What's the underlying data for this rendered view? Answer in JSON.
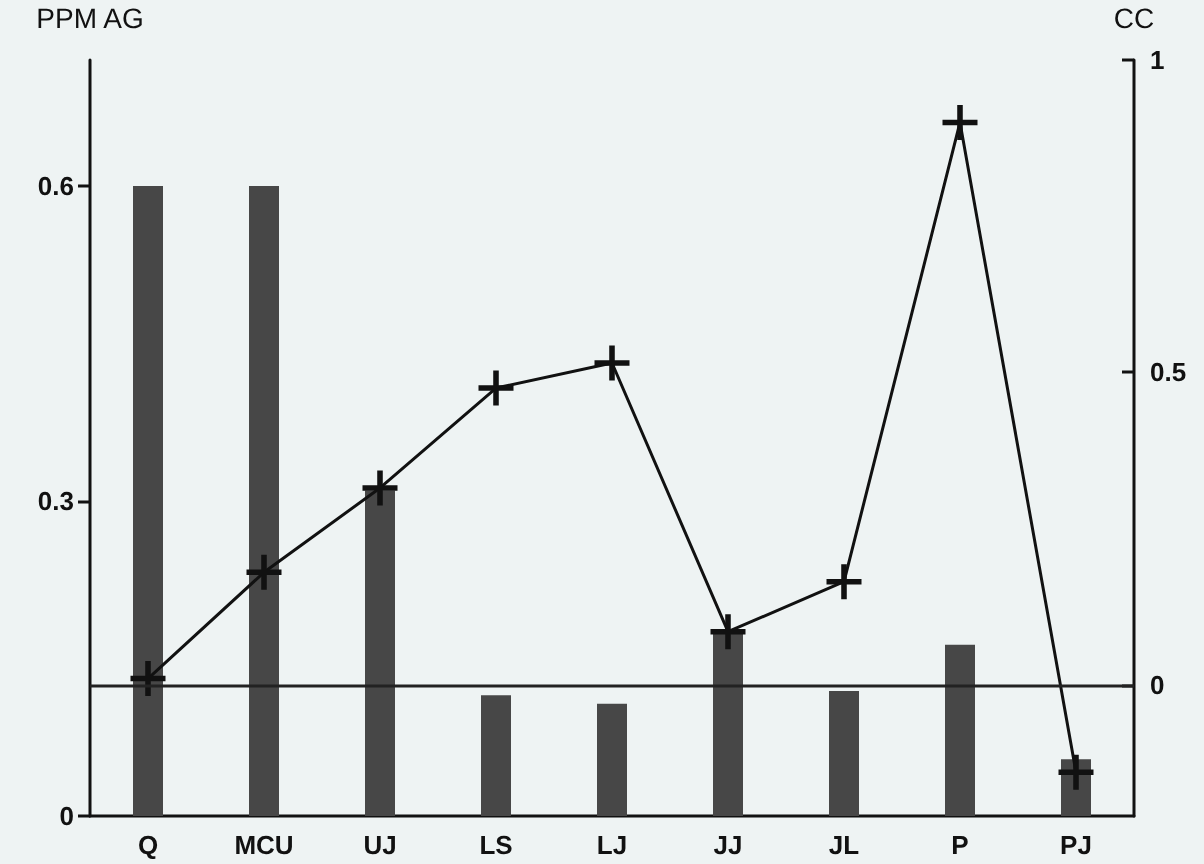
{
  "chart_data": {
    "type": "bar",
    "ylabel": "PPM AG",
    "y2label": "CC",
    "categories": [
      "Q",
      "MCU",
      "UJ",
      "LS",
      "LJ",
      "JJ",
      "JL",
      "P",
      "PJ"
    ],
    "series": [
      {
        "color": "#474747",
        "values": [
          0.6,
          0.6,
          0.31,
          0.115,
          0.107,
          0.178,
          0.119,
          0.163,
          0.054
        ]
      },
      {
        "type": "line",
        "axis": "y2",
        "color": "#111111",
        "marker": "cross",
        "values": [
          0.01,
          0.18,
          0.315,
          0.475,
          0.515,
          0.085,
          0.165,
          0.9,
          -0.14
        ]
      }
    ],
    "ylim": [
      0,
      0.72
    ],
    "yticks": [
      0,
      0.3,
      0.6
    ],
    "y2lim": [
      -0.21,
      1
    ],
    "y2ticks": [
      0,
      0.5,
      1
    ],
    "ref_lines": [
      {
        "axis": "y2",
        "value": 0,
        "color": "#222222"
      }
    ],
    "grid": false
  }
}
